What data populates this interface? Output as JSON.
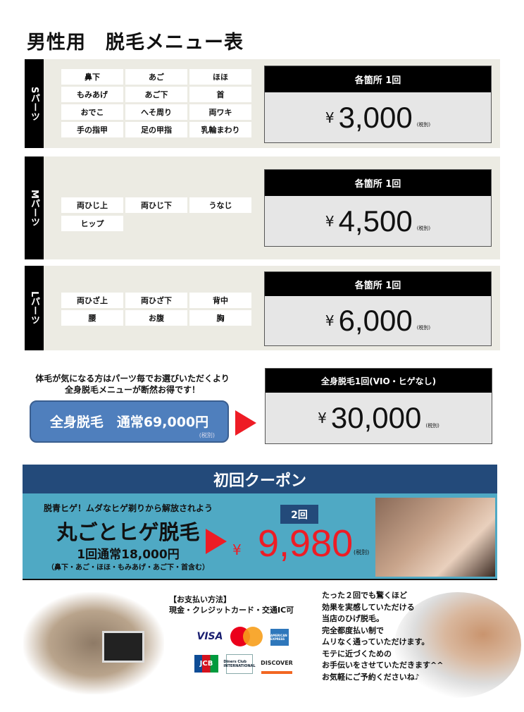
{
  "title": "男性用　脱毛メニュー表",
  "tax_label": "(税別)",
  "yen": "¥",
  "sections": [
    {
      "label": "Sパーツ",
      "items": [
        "鼻下",
        "あご",
        "ほほ",
        "もみあげ",
        "あご下",
        "首",
        "おでこ",
        "へそ周り",
        "両ワキ",
        "手の指甲",
        "足の甲指",
        "乳輪まわり"
      ],
      "price_header": "各箇所 1回",
      "price": "3,000"
    },
    {
      "label": "Mパーツ",
      "items": [
        "両ひじ上",
        "両ひじ下",
        "うなじ",
        "ヒップ"
      ],
      "price_header": "各箇所 1回",
      "price": "4,500"
    },
    {
      "label": "Lパーツ",
      "items": [
        "両ひざ上",
        "両ひざ下",
        "背中",
        "腰",
        "お腹",
        "胸"
      ],
      "price_header": "各箇所 1回",
      "price": "6,000"
    }
  ],
  "fullbody": {
    "note1": "体毛が気になる方はパーツ毎でお選びいただくより",
    "note2": "全身脱毛メニューが断然お得です！",
    "regular": "全身脱毛　通常69,000円",
    "price_header": "全身脱毛1回(VIO・ヒゲなし)",
    "price": "30,000"
  },
  "coupon": {
    "header": "初回クーポン",
    "tagline": "脱青ヒゲ！ムダなヒゲ剃りから解放されよう",
    "name": "丸ごとヒゲ脱毛",
    "regular": "1回通常18,000円",
    "parts": "（鼻下・あご・ほほ・もみあげ・あご下・首含む）",
    "count": "2回",
    "price": "9,980",
    "colors": {
      "header": "#234a7a",
      "body": "#4fa9c4",
      "price": "#ee1c25"
    }
  },
  "payment": {
    "heading": "【お支払い方法】",
    "methods": "現金・クレジットカード・交通IC可",
    "logos": [
      "VISA",
      "Mastercard",
      "AMERICAN EXPRESS",
      "JCB",
      "Diners Club INTERNATIONAL",
      "DISCOVER"
    ]
  },
  "message": [
    "たった２回でも驚くほど",
    "効果を実感していただける",
    "当店のひげ脱毛。",
    "完全都度払い制で",
    "ムリなく通っていただけます。",
    "モテに近づくための",
    "お手伝いをさせていただきます^^",
    "お気軽にご予約くださいね♪"
  ]
}
